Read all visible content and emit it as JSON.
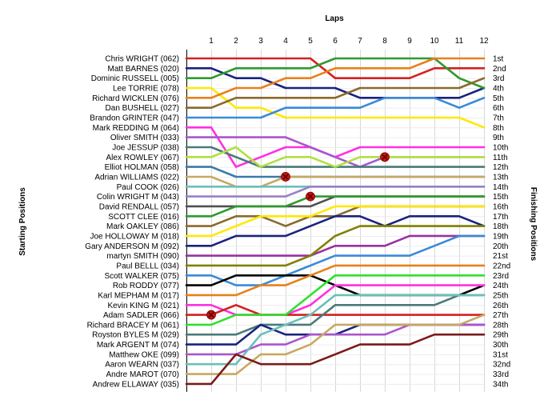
{
  "chart_data": {
    "type": "line",
    "title": "",
    "xlabel": "Laps",
    "ylabel_left": "Starting Positions",
    "ylabel_right": "Finishing Positions",
    "laps": [
      1,
      2,
      3,
      4,
      5,
      6,
      7,
      8,
      9,
      10,
      11,
      12
    ],
    "finishing_labels": [
      "1st",
      "2nd",
      "3rd",
      "4th",
      "5th",
      "6th",
      "7th",
      "8th",
      "9th",
      "10th",
      "11th",
      "12th",
      "13th",
      "14th",
      "15th",
      "16th",
      "17th",
      "18th",
      "19th",
      "20th",
      "21st",
      "22nd",
      "23rd",
      "24th",
      "25th",
      "26th",
      "27th",
      "28th",
      "29th",
      "30th",
      "31st",
      "32nd",
      "33rd",
      "34th"
    ],
    "series": [
      {
        "name": "Chris WRIGHT (062)",
        "color": "#d42020",
        "positions": [
          1,
          1,
          1,
          1,
          1,
          3,
          3,
          3,
          3,
          2,
          2,
          2
        ]
      },
      {
        "name": "Matt BARNES (020)",
        "color": "#1a237e",
        "positions": [
          2,
          3,
          3,
          4,
          4,
          4,
          5,
          5,
          5,
          5,
          5,
          4
        ]
      },
      {
        "name": "Dominic RUSSELL (005)",
        "color": "#2e9a2e",
        "positions": [
          3,
          2,
          2,
          2,
          2,
          1,
          1,
          1,
          1,
          1,
          3,
          4
        ]
      },
      {
        "name": "Lee TORRIE (078)",
        "color": "#ffe800",
        "positions": [
          4,
          6,
          6,
          7,
          7,
          7,
          7,
          7,
          7,
          7,
          7,
          8
        ]
      },
      {
        "name": "Richard WICKLEN (076)",
        "color": "#e8801a",
        "positions": [
          5,
          4,
          4,
          3,
          3,
          2,
          2,
          2,
          2,
          1,
          1,
          1
        ]
      },
      {
        "name": "Dan BUSHELL (027)",
        "color": "#8a6a2a",
        "positions": [
          6,
          5,
          5,
          5,
          5,
          5,
          4,
          4,
          4,
          4,
          4,
          3
        ]
      },
      {
        "name": "Brandon GRINTER (047)",
        "color": "#3a8ad8",
        "positions": [
          7,
          7,
          7,
          6,
          6,
          6,
          6,
          5,
          5,
          5,
          6,
          5
        ]
      },
      {
        "name": "Mark REDDING M (064)",
        "color": "#ff30e0",
        "positions": [
          8,
          12,
          11,
          10,
          10,
          11,
          10,
          10,
          10,
          10,
          10,
          10
        ]
      },
      {
        "name": "Oliver SMITH (033)",
        "color": "#aa55cc",
        "positions": [
          9,
          9,
          9,
          9,
          10,
          11,
          12,
          11,
          11,
          11,
          11,
          11
        ]
      },
      {
        "name": "Joe JESSUP (038)",
        "color": "#4a7a7a",
        "positions": [
          10,
          11,
          12,
          12,
          12,
          12,
          12,
          12,
          12,
          12,
          12,
          12
        ]
      },
      {
        "name": "Alex ROWLEY (067)",
        "color": "#b0e040",
        "positions": [
          11,
          10,
          12,
          11,
          11,
          12,
          11,
          11,
          11,
          11,
          11,
          11
        ]
      },
      {
        "name": "Elliot HOLMAN (058)",
        "color": "#3a7aaa",
        "positions": [
          12,
          13,
          13,
          13,
          13,
          13,
          13,
          13,
          13,
          13,
          13,
          13
        ]
      },
      {
        "name": "Adrian WILLIAMS (022)",
        "color": "#c8a860",
        "positions": [
          13,
          14,
          14,
          13,
          13,
          13,
          13,
          13,
          13,
          13,
          13,
          13
        ]
      },
      {
        "name": "Paul COOK (026)",
        "color": "#6ac0b8",
        "positions": [
          14,
          14,
          14,
          14,
          14,
          14,
          14,
          14,
          14,
          14,
          14,
          14
        ]
      },
      {
        "name": "Colin WRIGHT M (043)",
        "color": "#9a80c8",
        "positions": [
          15,
          15,
          15,
          15,
          14,
          14,
          14,
          14,
          14,
          14,
          14,
          14
        ]
      },
      {
        "name": "David RENDALL (057)",
        "color": "#505050",
        "positions": [
          16,
          16,
          16,
          16,
          16,
          15,
          15,
          15,
          15,
          15,
          15,
          15
        ]
      },
      {
        "name": "SCOTT CLEE (016)",
        "color": "#2e9a2e",
        "positions": [
          17,
          16,
          16,
          16,
          15,
          15,
          15,
          15,
          15,
          15,
          15,
          15
        ]
      },
      {
        "name": "Mark OAKLEY (086)",
        "color": "#8a6a2a",
        "positions": [
          18,
          17,
          17,
          18,
          17,
          17,
          16,
          16,
          16,
          16,
          16,
          16
        ]
      },
      {
        "name": "Joe HOLLOWAY M (018)",
        "color": "#ffe800",
        "positions": [
          19,
          18,
          17,
          17,
          17,
          16,
          16,
          16,
          16,
          16,
          16,
          16
        ]
      },
      {
        "name": "Gary ANDERSON M (092)",
        "color": "#1a237e",
        "positions": [
          20,
          19,
          19,
          19,
          18,
          17,
          17,
          18,
          17,
          17,
          17,
          18
        ]
      },
      {
        "name": "martyn SMITH (090)",
        "color": "#9a30a0",
        "positions": [
          21,
          21,
          21,
          21,
          21,
          20,
          20,
          20,
          19,
          19,
          19,
          19
        ]
      },
      {
        "name": "Paul BELLL (034)",
        "color": "#808000",
        "positions": [
          22,
          22,
          22,
          22,
          21,
          19,
          18,
          18,
          18,
          18,
          18,
          18
        ]
      },
      {
        "name": "Scott WALKER (075)",
        "color": "#3a8ad8",
        "positions": [
          23,
          24,
          24,
          23,
          22,
          21,
          21,
          21,
          21,
          20,
          19,
          19
        ]
      },
      {
        "name": "Rob RODDY (077)",
        "color": "#000000",
        "positions": [
          24,
          23,
          23,
          23,
          23,
          24,
          25,
          25,
          25,
          25,
          25,
          24
        ]
      },
      {
        "name": "Karl MEPHAM M (017)",
        "color": "#e8801a",
        "positions": [
          25,
          25,
          24,
          24,
          23,
          22,
          22,
          22,
          22,
          22,
          22,
          22
        ]
      },
      {
        "name": "Kevin KING M (021)",
        "color": "#ff30e0",
        "positions": [
          26,
          27,
          27,
          27,
          26,
          24,
          24,
          24,
          24,
          24,
          24,
          24
        ]
      },
      {
        "name": "Adam SADLER (066)",
        "color": "#d42020",
        "positions": [
          27,
          26,
          27,
          27,
          27,
          27,
          27,
          27,
          27,
          27,
          27,
          27
        ]
      },
      {
        "name": "Richard BRACEY M (061)",
        "color": "#30e030",
        "positions": [
          28,
          27,
          27,
          27,
          25,
          23,
          23,
          23,
          23,
          23,
          23,
          23
        ]
      },
      {
        "name": "Royston BYLES M (029)",
        "color": "#4a7a7a",
        "positions": [
          29,
          29,
          28,
          28,
          28,
          26,
          26,
          26,
          26,
          26,
          25,
          25
        ]
      },
      {
        "name": "Mark ARGENT M (074)",
        "color": "#1a237e",
        "positions": [
          30,
          30,
          28,
          29,
          29,
          29,
          28,
          28,
          28,
          28,
          28,
          28
        ]
      },
      {
        "name": "Matthew OKE (099)",
        "color": "#aa55cc",
        "positions": [
          31,
          31,
          30,
          30,
          29,
          29,
          29,
          29,
          28,
          28,
          28,
          28
        ]
      },
      {
        "name": "Aaron WEARN (037)",
        "color": "#6ac0b8",
        "positions": [
          32,
          32,
          29,
          28,
          27,
          25,
          25,
          25,
          25,
          25,
          25,
          25
        ]
      },
      {
        "name": "Andre MAROT (070)",
        "color": "#c8a860",
        "positions": [
          33,
          33,
          31,
          31,
          30,
          28,
          28,
          28,
          28,
          28,
          28,
          27
        ]
      },
      {
        "name": "Andrew ELLAWAY (035)",
        "color": "#7a1a1a",
        "positions": [
          34,
          31,
          32,
          32,
          32,
          31,
          30,
          30,
          30,
          29,
          29,
          29
        ]
      }
    ],
    "retirements": [
      {
        "driver": "Adrian WILLIAMS (022)",
        "lap": 4,
        "position": 13
      },
      {
        "driver": "Colin WRIGHT M (043)",
        "lap": 5,
        "position": 15
      },
      {
        "driver": "Alex ROWLEY (067)",
        "lap": 8,
        "position": 11
      },
      {
        "driver": "Adam SADLER (066)",
        "lap": 1,
        "position": 27
      }
    ],
    "grid": true,
    "legend": "none"
  }
}
